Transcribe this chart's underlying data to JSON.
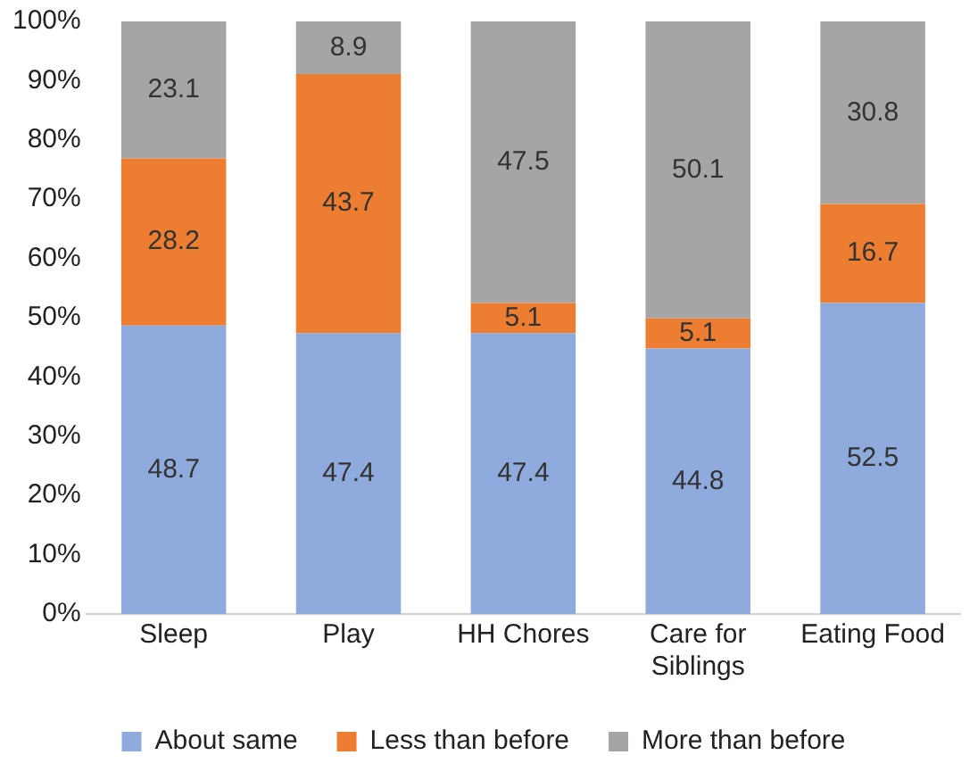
{
  "chart_data": {
    "type": "bar",
    "stacked": true,
    "categories": [
      "Sleep",
      "Play",
      "HH Chores",
      "Care for Siblings",
      "Eating Food"
    ],
    "series": [
      {
        "name": "About same",
        "color": "#8faadc",
        "values": [
          48.7,
          47.4,
          47.4,
          44.8,
          52.5
        ]
      },
      {
        "name": "Less than before",
        "color": "#ed7d31",
        "values": [
          28.2,
          43.7,
          5.1,
          5.1,
          16.7
        ]
      },
      {
        "name": "More than before",
        "color": "#a5a5a5",
        "values": [
          23.1,
          8.9,
          47.5,
          50.1,
          30.8
        ]
      }
    ],
    "ylim": [
      0,
      100
    ],
    "yticks": [
      {
        "value": 0,
        "label": "0%"
      },
      {
        "value": 10,
        "label": "10%"
      },
      {
        "value": 20,
        "label": "20%"
      },
      {
        "value": 30,
        "label": "30%"
      },
      {
        "value": 40,
        "label": "40%"
      },
      {
        "value": 50,
        "label": "50%"
      },
      {
        "value": 60,
        "label": "60%"
      },
      {
        "value": 70,
        "label": "70%"
      },
      {
        "value": 80,
        "label": "80%"
      },
      {
        "value": 90,
        "label": "90%"
      },
      {
        "value": 100,
        "label": "100%"
      }
    ],
    "data_labels": true,
    "legend": "bottom",
    "grid": false
  }
}
